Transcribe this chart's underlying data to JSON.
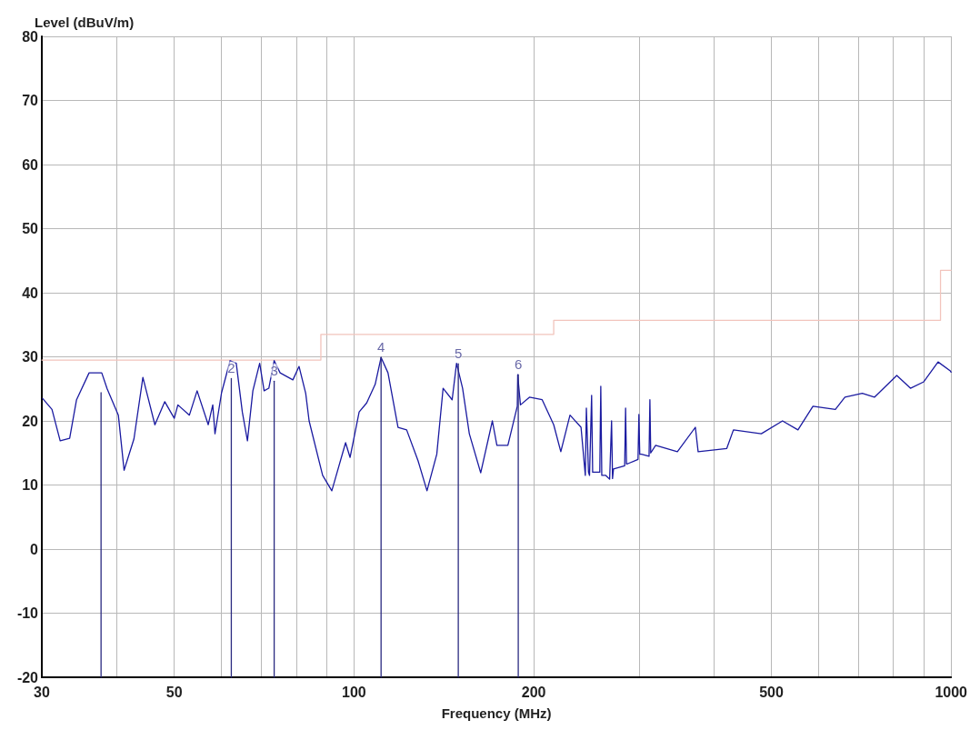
{
  "chart_data": {
    "type": "line",
    "xlabel": "Frequency (MHz)",
    "ylabel": "Level (dBuV/m)",
    "log": "x",
    "xlim": [
      30,
      1000
    ],
    "ylim": [
      -20,
      80
    ],
    "xticks": [
      30,
      {
        "value": 40,
        "label": null
      },
      50,
      {
        "value": 60,
        "label": null
      },
      {
        "value": 70,
        "label": null
      },
      {
        "value": 80,
        "label": null
      },
      {
        "value": 90,
        "label": null
      },
      100,
      200,
      {
        "value": 300,
        "label": null
      },
      {
        "value": 400,
        "label": null
      },
      500,
      {
        "value": 600,
        "label": null
      },
      {
        "value": 700,
        "label": null
      },
      {
        "value": 800,
        "label": null
      },
      {
        "value": 900,
        "label": null
      },
      1000
    ],
    "yticks": [
      -20,
      -10,
      0,
      10,
      20,
      30,
      40,
      50,
      60,
      70,
      80
    ],
    "grid": true,
    "marker": "none",
    "annotations": [
      {
        "text": "2",
        "x": 62.3,
        "y": 26.6
      },
      {
        "text": "3",
        "x": 73.5,
        "y": 26.2
      },
      {
        "text": "4",
        "x": 111,
        "y": 29.9
      },
      {
        "text": "5",
        "x": 149.5,
        "y": 28.9
      },
      {
        "text": "6",
        "x": 188.4,
        "y": 27.2
      }
    ],
    "line_style": "solid",
    "series": [
      {
        "type": "line",
        "color": "#f2c4bc",
        "x": [
          30,
          88,
          88,
          216,
          216,
          960,
          960,
          1000
        ],
        "values": [
          29.5,
          29.5,
          33.5,
          33.5,
          35.7,
          35.7,
          43.5,
          43.5
        ]
      },
      {
        "type": "line",
        "color": "#1a1aa0",
        "x": [
          30.1,
          31.2,
          32.2,
          33.4,
          34.3,
          36.0,
          37.8,
          38.6,
          40.3,
          41.2,
          42.8,
          44.3,
          46.4,
          48.2,
          50,
          50.7,
          53,
          54.6,
          57,
          58,
          58.5,
          60,
          62,
          63.5,
          65,
          66.3,
          67.7,
          69.5,
          70.7,
          72,
          73.5,
          75.2,
          79,
          80.9,
          83,
          84.1,
          88.6,
          91.8,
          96.8,
          98.5,
          102,
          105,
          108.5,
          111,
          114,
          118.5,
          122.5,
          128,
          132.5,
          137.6,
          141,
          146,
          148.5,
          152,
          156,
          163,
          170.5,
          173.5,
          181,
          187.7,
          188,
          190,
          196.7,
          206.6,
          216,
          222,
          230,
          240,
          244,
          245,
          247,
          248,
          250,
          251,
          258,
          259,
          260,
          264,
          268,
          270,
          271,
          272,
          284,
          285,
          286,
          287,
          299,
          300,
          301,
          303,
          312,
          313,
          314,
          320,
          348,
          373,
          377,
          421,
          432,
          481,
          522,
          554,
          587,
          640,
          664,
          710,
          744,
          811,
          855,
          900,
          951,
          997,
          1000
        ],
        "values": [
          23.5,
          21.8,
          16.9,
          17.3,
          23.3,
          27.5,
          27.5,
          25,
          20.9,
          12.3,
          17.2,
          26.8,
          19.4,
          23,
          20.4,
          22.5,
          20.9,
          24.7,
          19.4,
          22.5,
          18,
          24.4,
          29.4,
          29,
          21.4,
          16.9,
          24.7,
          29,
          24.7,
          25.1,
          29.4,
          27.5,
          26.4,
          28.5,
          24.3,
          20,
          11.5,
          9.1,
          16.6,
          14.3,
          21.4,
          22.8,
          25.7,
          29.9,
          27.5,
          19,
          18.6,
          13.8,
          9.1,
          14.8,
          25.1,
          23.3,
          29,
          25.1,
          18,
          11.9,
          20,
          16.2,
          16.2,
          22.3,
          27.2,
          22.5,
          23.7,
          23.3,
          19.4,
          15.2,
          20.9,
          19,
          11.5,
          22,
          12,
          11.5,
          24,
          12,
          12,
          25.4,
          11.5,
          11.5,
          10.9,
          20,
          11,
          12.5,
          13,
          22,
          13.3,
          13.3,
          14,
          21,
          14.8,
          14.8,
          14.5,
          23.3,
          15,
          16.2,
          15.2,
          19,
          15.2,
          15.7,
          18.6,
          18,
          20,
          18.6,
          22.3,
          21.8,
          23.7,
          24.3,
          23.7,
          27.1,
          25.1,
          26.1,
          29.2,
          27.8,
          27.6
        ]
      },
      {
        "type": "line",
        "color": "#2a2a80",
        "x": [
          37.7,
          37.7
        ],
        "values": [
          -20,
          24.4
        ]
      },
      {
        "type": "line",
        "color": "#2a2a80",
        "x": [
          62.3,
          62.3
        ],
        "values": [
          -20,
          26.6
        ]
      },
      {
        "type": "line",
        "color": "#2a2a80",
        "x": [
          73.5,
          73.5
        ],
        "values": [
          -20,
          26.2
        ]
      },
      {
        "type": "line",
        "color": "#2a2a80",
        "x": [
          111,
          111
        ],
        "values": [
          -20,
          29.9
        ]
      },
      {
        "type": "line",
        "color": "#2a2a80",
        "x": [
          149.5,
          149.5
        ],
        "values": [
          -20,
          28.9
        ]
      },
      {
        "type": "line",
        "color": "#2a2a80",
        "x": [
          188.4,
          188.4
        ],
        "values": [
          -20,
          27.2
        ]
      }
    ]
  }
}
